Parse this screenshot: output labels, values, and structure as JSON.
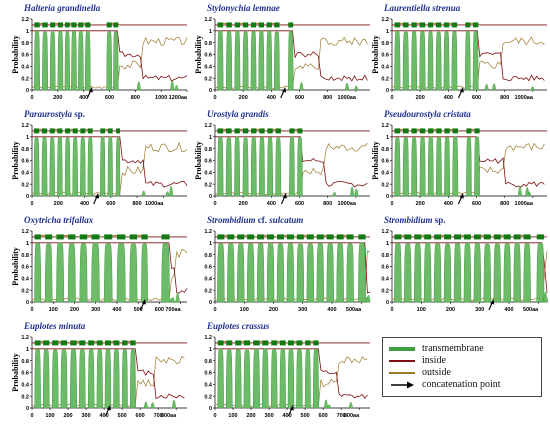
{
  "colors": {
    "transmembrane": "#3f9e3f",
    "transmembrane_fill": "#6dbb68",
    "inside": "#7d0f12",
    "outside": "#9b7a2c",
    "arrow": "#000000",
    "title": "#1f2f8f"
  },
  "chart_data": [
    {
      "type": "area",
      "title": "Halteria grandinella",
      "ylabel": "Probability",
      "ylim": [
        0,
        1.2
      ],
      "yticks": [
        "0",
        "0.2",
        "0.4",
        "0.6",
        "0.8",
        "1",
        "1.2"
      ],
      "xlim": [
        0,
        1200
      ],
      "xticks": [
        "0",
        "200",
        "400",
        "600",
        "800",
        "1000",
        "1200aa"
      ],
      "helices": [
        [
          18,
          60
        ],
        [
          80,
          122
        ],
        [
          140,
          180
        ],
        [
          200,
          240
        ],
        [
          255,
          292
        ],
        [
          305,
          345
        ],
        [
          358,
          398
        ],
        [
          412,
          452
        ],
        [
          578,
          618
        ],
        [
          630,
          668
        ]
      ],
      "concatenation_point": 460
    },
    {
      "type": "area",
      "title": "Stylonychia lemnae",
      "ylabel": "Probability",
      "ylim": [
        0,
        1.2
      ],
      "yticks": [
        "0",
        "0.2",
        "0.4",
        "0.6",
        "0.8",
        "1",
        "1.2"
      ],
      "xlim": [
        0,
        1100
      ],
      "xticks": [
        "0",
        "200",
        "400",
        "600",
        "800",
        "1000aa"
      ],
      "helices": [
        [
          18,
          58
        ],
        [
          80,
          120
        ],
        [
          140,
          178
        ],
        [
          198,
          236
        ],
        [
          255,
          292
        ],
        [
          310,
          348
        ],
        [
          366,
          404
        ],
        [
          420,
          458
        ],
        [
          520,
          555
        ]
      ],
      "concatenation_point": 495
    },
    {
      "type": "area",
      "title": "Laurentiella strenua",
      "ylabel": "Probability",
      "ylim": [
        0,
        1.2
      ],
      "yticks": [
        "0",
        "0.2",
        "0.4",
        "0.6",
        "0.8",
        "1",
        "1.2"
      ],
      "xlim": [
        0,
        1100
      ],
      "xticks": [
        "0",
        "200",
        "400",
        "600",
        "800",
        "1000aa"
      ],
      "helices": [
        [
          18,
          58
        ],
        [
          78,
          118
        ],
        [
          138,
          176
        ],
        [
          196,
          236
        ],
        [
          255,
          292
        ],
        [
          312,
          350
        ],
        [
          368,
          406
        ],
        [
          424,
          462
        ],
        [
          520,
          556
        ],
        [
          575,
          612
        ]
      ],
      "concatenation_point": 500
    },
    {
      "type": "area",
      "title": "Paraurostyla",
      "title_suffix": "sp.",
      "ylabel": "Probability",
      "ylim": [
        0,
        1.2
      ],
      "yticks": [
        "0",
        "0.2",
        "0.4",
        "0.6",
        "0.8",
        "1",
        "1.2"
      ],
      "xlim": [
        0,
        1180
      ],
      "xticks": [
        "0",
        "200",
        "400",
        "600",
        "800",
        "1000aa"
      ],
      "helices": [
        [
          15,
          55
        ],
        [
          75,
          115
        ],
        [
          135,
          173
        ],
        [
          193,
          231
        ],
        [
          252,
          290
        ],
        [
          310,
          348
        ],
        [
          368,
          406
        ],
        [
          425,
          462
        ],
        [
          520,
          556
        ],
        [
          578,
          614
        ],
        [
          640,
          670
        ]
      ],
      "concatenation_point": 500
    },
    {
      "type": "area",
      "title": "Urostyla grandis",
      "ylabel": "Probability",
      "ylim": [
        0,
        1.2
      ],
      "yticks": [
        "0",
        "0.2",
        "0.4",
        "0.6",
        "0.8",
        "1",
        "1.2"
      ],
      "xlim": [
        0,
        1100
      ],
      "xticks": [
        "0",
        "200",
        "400",
        "600",
        "800",
        "1000aa"
      ],
      "helices": [
        [
          18,
          58
        ],
        [
          78,
          118
        ],
        [
          138,
          176
        ],
        [
          198,
          236
        ],
        [
          256,
          294
        ],
        [
          314,
          352
        ],
        [
          372,
          410
        ],
        [
          430,
          468
        ],
        [
          528,
          564
        ],
        [
          585,
          620
        ]
      ],
      "concatenation_point": 500
    },
    {
      "type": "area",
      "title": "Pseudourostyla cristata",
      "ylabel": "Probability",
      "ylim": [
        0,
        1.2
      ],
      "yticks": [
        "0",
        "0.2",
        "0.4",
        "0.6",
        "0.8",
        "1",
        "1.2"
      ],
      "xlim": [
        0,
        1100
      ],
      "xticks": [
        "0",
        "200",
        "400",
        "600",
        "800",
        "1000aa"
      ],
      "helices": [
        [
          18,
          58
        ],
        [
          78,
          118
        ],
        [
          138,
          176
        ],
        [
          198,
          236
        ],
        [
          256,
          294
        ],
        [
          314,
          352
        ],
        [
          372,
          410
        ],
        [
          430,
          468
        ],
        [
          528,
          564
        ],
        [
          585,
          622
        ]
      ],
      "concatenation_point": 500
    },
    {
      "type": "area",
      "title": "Oxytricha trifallax",
      "ylabel": "Probability",
      "ylim": [
        0,
        1.2
      ],
      "yticks": [
        "0",
        "0.2",
        "0.4",
        "0.6",
        "0.8",
        "1",
        "1.2"
      ],
      "xlim": [
        0,
        730
      ],
      "xticks": [
        "0",
        "100",
        "200",
        "300",
        "400",
        "500",
        "600",
        "700aa"
      ],
      "helices": [
        [
          12,
          42
        ],
        [
          62,
          95
        ],
        [
          115,
          150
        ],
        [
          170,
          205
        ],
        [
          225,
          260
        ],
        [
          280,
          318
        ],
        [
          340,
          378
        ],
        [
          400,
          440
        ],
        [
          460,
          495
        ],
        [
          515,
          545
        ],
        [
          610,
          648
        ]
      ],
      "concatenation_point": 530
    },
    {
      "type": "area",
      "title": "Strombidium",
      "title_suffix": "cf.",
      "title_tail": "sulcatum",
      "ylabel": "",
      "ylim": [
        0,
        1.2
      ],
      "yticks": [
        "0",
        "0.2",
        "0.4",
        "0.6",
        "0.8",
        "1",
        "1.2"
      ],
      "xlim": [
        0,
        530
      ],
      "xticks": [
        "0",
        "100",
        "200",
        "300",
        "400",
        "500aa"
      ],
      "helices": [
        [
          8,
          32
        ],
        [
          42,
          66
        ],
        [
          76,
          100
        ],
        [
          110,
          134
        ],
        [
          144,
          168
        ],
        [
          178,
          202
        ],
        [
          212,
          236
        ],
        [
          246,
          270
        ],
        [
          280,
          304
        ],
        [
          314,
          338
        ],
        [
          348,
          372
        ],
        [
          382,
          406
        ],
        [
          416,
          440
        ],
        [
          450,
          474
        ],
        [
          490,
          515
        ]
      ],
      "concatenation_point": null
    },
    {
      "type": "area",
      "title": "Strombidium",
      "title_suffix": "sp.",
      "ylabel": "",
      "ylim": [
        0,
        1.2
      ],
      "yticks": [
        "0",
        "0.2",
        "0.4",
        "0.6",
        "0.8",
        "1",
        "1.2"
      ],
      "xlim": [
        0,
        530
      ],
      "xticks": [
        "0",
        "100",
        "200",
        "300",
        "400",
        "500aa"
      ],
      "helices": [
        [
          8,
          32
        ],
        [
          42,
          66
        ],
        [
          76,
          100
        ],
        [
          110,
          134
        ],
        [
          144,
          168
        ],
        [
          178,
          202
        ],
        [
          212,
          236
        ],
        [
          246,
          270
        ],
        [
          280,
          304
        ],
        [
          314,
          338
        ],
        [
          348,
          372
        ],
        [
          382,
          406
        ],
        [
          416,
          440
        ],
        [
          450,
          474
        ],
        [
          495,
          520
        ]
      ],
      "concatenation_point": 345
    },
    {
      "type": "area",
      "title": "Euplotes minuta",
      "ylabel": "Probability",
      "ylim": [
        0,
        1.2
      ],
      "yticks": [
        "0",
        "0.2",
        "0.4",
        "0.6",
        "0.8",
        "1",
        "1.2"
      ],
      "xlim": [
        0,
        860
      ],
      "xticks": [
        "0",
        "100",
        "200",
        "300",
        "400",
        "500",
        "600",
        "700",
        "800aa"
      ],
      "helices": [
        [
          15,
          48
        ],
        [
          62,
          96
        ],
        [
          112,
          146
        ],
        [
          160,
          195
        ],
        [
          212,
          248
        ],
        [
          262,
          296
        ],
        [
          312,
          345
        ],
        [
          360,
          392
        ],
        [
          405,
          438
        ],
        [
          452,
          485
        ],
        [
          500,
          530
        ],
        [
          545,
          575
        ]
      ],
      "concatenation_point": 430
    },
    {
      "type": "area",
      "title": "Euplotes crassus",
      "ylabel": "",
      "ylim": [
        0,
        1.2
      ],
      "yticks": [
        "0",
        "0.2",
        "0.4",
        "0.6",
        "0.8",
        "1",
        "1.2"
      ],
      "xlim": [
        0,
        860
      ],
      "xticks": [
        "0",
        "100",
        "200",
        "300",
        "400",
        "500",
        "600",
        "700",
        "800aa"
      ],
      "helices": [
        [
          15,
          48
        ],
        [
          62,
          96
        ],
        [
          112,
          146
        ],
        [
          160,
          195
        ],
        [
          212,
          248
        ],
        [
          262,
          296
        ],
        [
          312,
          345
        ],
        [
          360,
          392
        ],
        [
          405,
          438
        ],
        [
          452,
          485
        ],
        [
          500,
          530
        ],
        [
          545,
          575
        ]
      ],
      "concatenation_point": 430
    }
  ],
  "legend": {
    "items": [
      {
        "label": "transmembrane",
        "color_key": "transmembrane"
      },
      {
        "label": "inside",
        "color_key": "inside"
      },
      {
        "label": "outside",
        "color_key": "outside"
      },
      {
        "label": "concatenation point",
        "color_key": "arrow"
      }
    ]
  }
}
